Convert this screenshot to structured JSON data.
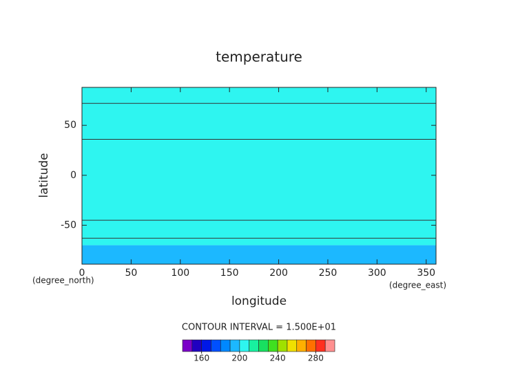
{
  "chart_data": {
    "type": "contour",
    "title": "temperature",
    "x_label": "longitude",
    "y_label": "latitude",
    "x_unit": "(degree_east)",
    "y_unit": "(degree_north)",
    "xlim": [
      0,
      360
    ],
    "ylim": [
      -89,
      88
    ],
    "xticks": [
      0,
      50,
      100,
      150,
      200,
      250,
      300,
      350
    ],
    "yticks": [
      -50,
      0,
      50
    ],
    "fill_bands": [
      {
        "lat_range": [
          -89,
          -70
        ],
        "color": "#1cb8ff"
      },
      {
        "lat_range": [
          -70,
          88
        ],
        "color": "#2ef5f0"
      }
    ],
    "contours": {
      "lat": [
        72,
        36,
        -45,
        -63
      ],
      "color": "#333333"
    },
    "contour_interval": "CONTOUR INTERVAL = 1.500E+01",
    "colorbar": {
      "bounds": [
        140,
        150,
        160,
        170,
        180,
        190,
        200,
        210,
        220,
        230,
        240,
        250,
        260,
        270,
        280,
        290,
        300
      ],
      "colors": [
        "#7a00c8",
        "#2000c0",
        "#0018e6",
        "#0050ff",
        "#0088ff",
        "#1cb8ff",
        "#2ef5f0",
        "#18f0a0",
        "#18e060",
        "#40e020",
        "#a0e000",
        "#f0e000",
        "#ffb000",
        "#ff7000",
        "#ff3020",
        "#ff9090"
      ],
      "ticks": [
        160,
        200,
        240,
        280
      ]
    }
  }
}
